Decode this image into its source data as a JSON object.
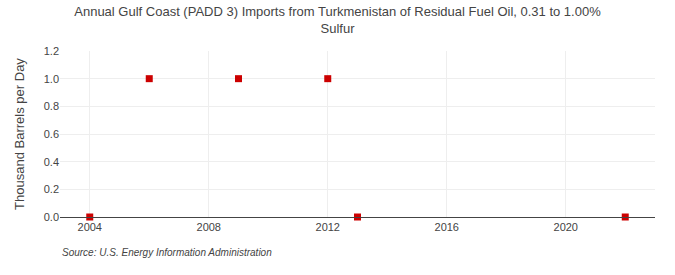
{
  "chart_data": {
    "type": "scatter",
    "title": "Annual Gulf Coast (PADD 3) Imports from Turkmenistan of Residual Fuel Oil, 0.31 to 1.00%\nSulfur",
    "ylabel": "Thousand Barrels per Day",
    "annotations": [
      "Source: U.S. Energy Information Administration"
    ],
    "x": [
      2004,
      2006,
      2009,
      2012,
      2013,
      2022
    ],
    "values": [
      0.0,
      1.0,
      1.0,
      1.0,
      0.0,
      0.0
    ],
    "color": "#cc0000",
    "marker": "square",
    "xlim": [
      2003,
      2023
    ],
    "xticks": [
      2004,
      2008,
      2012,
      2016,
      2020
    ],
    "ylim": [
      0.0,
      1.2
    ],
    "yticks": [
      {
        "value": 0.0,
        "label": "0.0"
      },
      0.2,
      0.4,
      0.6,
      0.8,
      {
        "value": 1.0,
        "label": "1.0"
      },
      1.2
    ],
    "grid": true
  }
}
